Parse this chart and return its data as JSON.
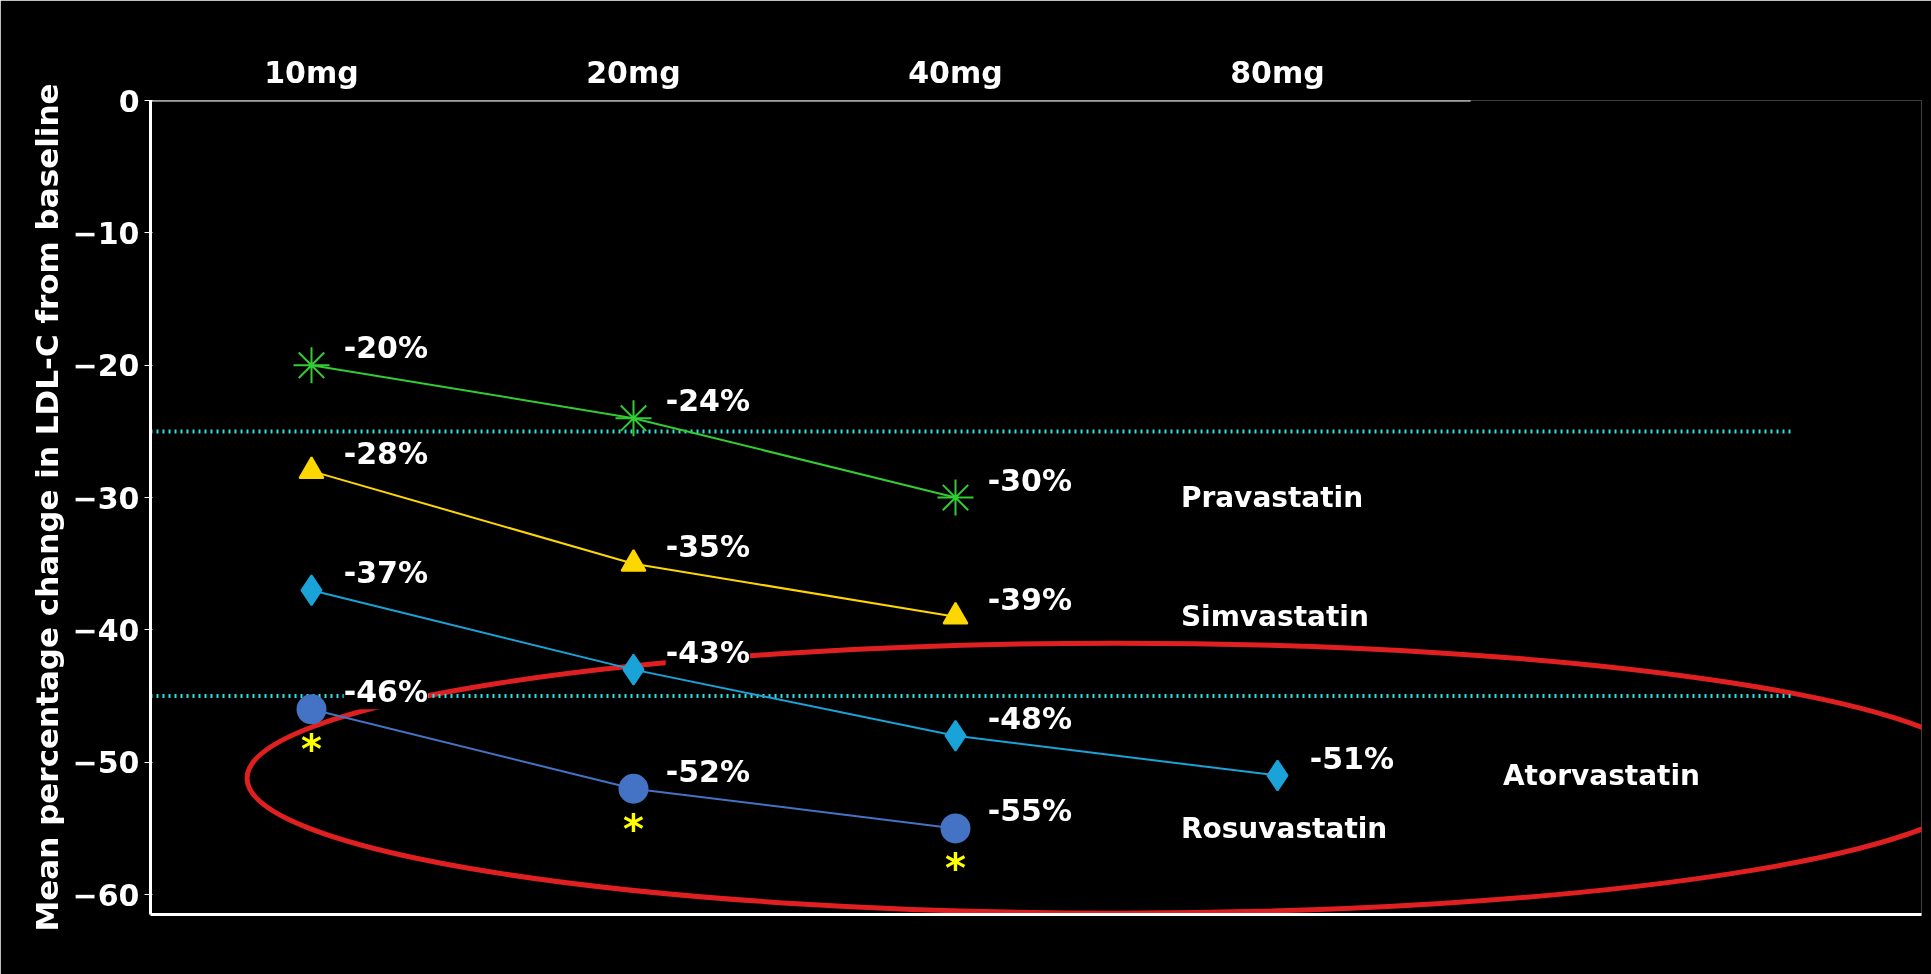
{
  "chart_data": {
    "type": "line",
    "ylabel": "Mean percentage change in LDL-C from baseline",
    "categories": [
      "10mg",
      "20mg",
      "40mg",
      "80mg"
    ],
    "ylim": [
      -61.5,
      0
    ],
    "yticks": [
      0,
      -10,
      -20,
      -30,
      -40,
      -50,
      -60
    ],
    "grid": false,
    "legend": false,
    "data_labels": true,
    "series": [
      {
        "name": "Pravastatin",
        "color": "#33cc33",
        "marker": "cross",
        "values": [
          -20,
          -24,
          -30,
          null
        ],
        "value_labels": [
          "-20%",
          "-24%",
          "-30%",
          null
        ]
      },
      {
        "name": "Simvastatin",
        "color": "#ffd700",
        "marker": "triangle",
        "values": [
          -28,
          -35,
          -39,
          null
        ],
        "value_labels": [
          "-28%",
          "-35%",
          "-39%",
          null
        ]
      },
      {
        "name": "Atorvastatin",
        "color": "#1aa3d9",
        "marker": "diamond",
        "values": [
          -37,
          -43,
          -48,
          -51
        ],
        "value_labels": [
          "-37%",
          "-43%",
          "-48%",
          "-51%"
        ]
      },
      {
        "name": "Rosuvastatin",
        "color": "#4472c4",
        "marker": "circle",
        "values": [
          -46,
          -52,
          -55,
          null
        ],
        "value_labels": [
          "-46%",
          "-52%",
          "-55%",
          null
        ]
      }
    ],
    "ref_lines": [
      {
        "axis": "y",
        "value": -25,
        "color": "#33dddd",
        "line_style": "dotted"
      },
      {
        "axis": "y",
        "value": -45,
        "color": "#33dddd",
        "line_style": "dotted"
      }
    ],
    "annotations": [
      "*",
      "*",
      "*"
    ]
  }
}
